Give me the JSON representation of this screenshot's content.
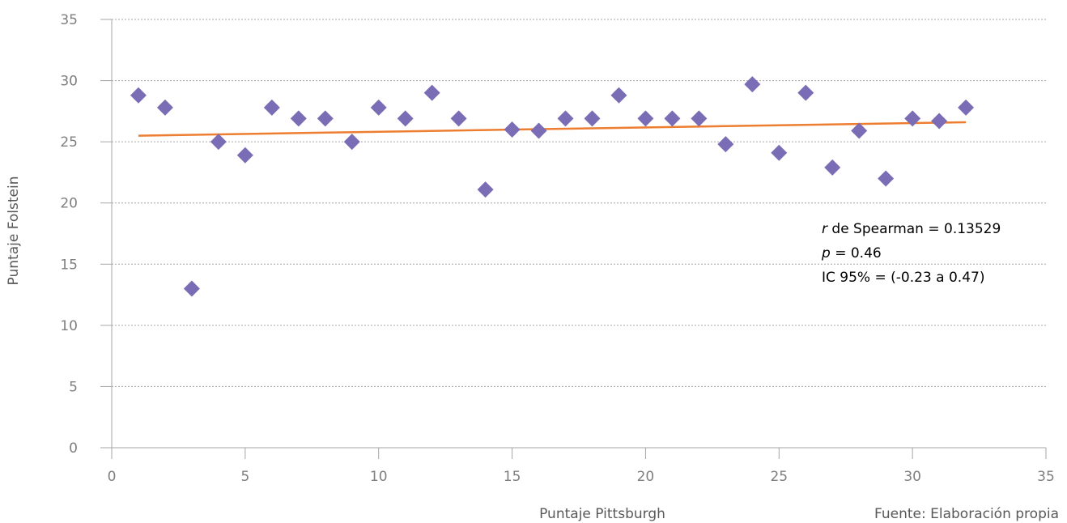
{
  "chart_data": {
    "type": "scatter",
    "xlabel": "Puntaje Pittsburgh",
    "ylabel": "Puntaje Folstein",
    "source_note": "Fuente: Elaboración propia",
    "xlim": [
      0,
      35
    ],
    "ylim": [
      0,
      35
    ],
    "xticks": [
      0,
      5,
      10,
      15,
      20,
      25,
      30,
      35
    ],
    "yticks": [
      0,
      5,
      10,
      15,
      20,
      25,
      30,
      35
    ],
    "grid": "horizontal-dotted",
    "marker": "diamond",
    "marker_color": "#7b6db5",
    "trend_color": "#ed7d31",
    "grid_color": "#a6a6a6",
    "axis_color": "#a6a6a6",
    "points": [
      {
        "x": 1,
        "y": 28.8
      },
      {
        "x": 2,
        "y": 27.8
      },
      {
        "x": 3,
        "y": 13
      },
      {
        "x": 4,
        "y": 25
      },
      {
        "x": 5,
        "y": 23.9
      },
      {
        "x": 6,
        "y": 27.8
      },
      {
        "x": 7,
        "y": 26.9
      },
      {
        "x": 8,
        "y": 26.9
      },
      {
        "x": 9,
        "y": 25
      },
      {
        "x": 10,
        "y": 27.8
      },
      {
        "x": 11,
        "y": 26.9
      },
      {
        "x": 12,
        "y": 29
      },
      {
        "x": 13,
        "y": 26.9
      },
      {
        "x": 14,
        "y": 21.1
      },
      {
        "x": 15,
        "y": 26
      },
      {
        "x": 16,
        "y": 25.9
      },
      {
        "x": 17,
        "y": 26.9
      },
      {
        "x": 18,
        "y": 26.9
      },
      {
        "x": 19,
        "y": 28.8
      },
      {
        "x": 20,
        "y": 26.9
      },
      {
        "x": 21,
        "y": 26.9
      },
      {
        "x": 22,
        "y": 26.9
      },
      {
        "x": 23,
        "y": 24.8
      },
      {
        "x": 24,
        "y": 29.7
      },
      {
        "x": 25,
        "y": 24.1
      },
      {
        "x": 26,
        "y": 29
      },
      {
        "x": 27,
        "y": 22.9
      },
      {
        "x": 28,
        "y": 25.9
      },
      {
        "x": 29,
        "y": 22
      },
      {
        "x": 30,
        "y": 26.9
      },
      {
        "x": 31,
        "y": 26.7
      },
      {
        "x": 32,
        "y": 27.8
      }
    ],
    "trendline": {
      "x0": 1,
      "y0": 25.5,
      "x1": 32,
      "y1": 26.6
    },
    "annotations": [
      {
        "italic": "r",
        "text": " de Spearman = 0.13529"
      },
      {
        "italic": "p",
        "text": " = 0.46"
      },
      {
        "italic": "",
        "text": "IC 95% = (-0.23 a 0.47)"
      }
    ]
  }
}
